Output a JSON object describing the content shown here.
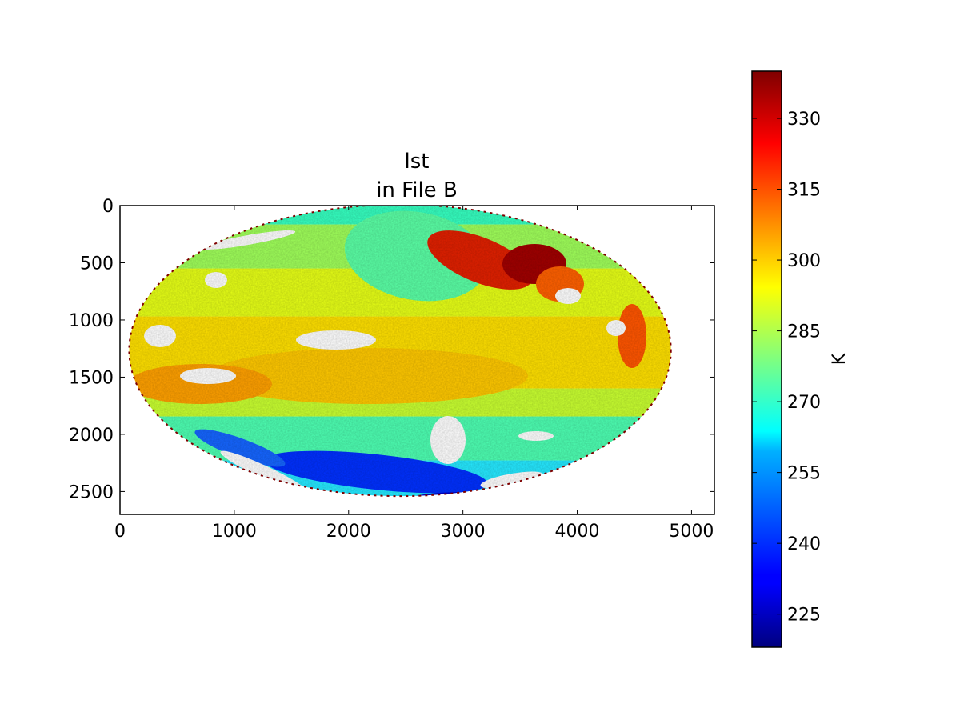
{
  "chart_data": {
    "type": "heatmap",
    "title_lines": [
      "lst",
      "in File B"
    ],
    "xlabel": "",
    "ylabel": "",
    "xlim": [
      0,
      5200
    ],
    "ylim": [
      2700,
      0
    ],
    "x_ticks": [
      0,
      1000,
      2000,
      3000,
      4000,
      5000
    ],
    "y_ticks": [
      0,
      500,
      1000,
      1500,
      2000,
      2500
    ],
    "x_tick_labels": [
      "0",
      "1000",
      "2000",
      "3000",
      "4000",
      "5000"
    ],
    "y_tick_labels": [
      "0",
      "500",
      "1000",
      "1500",
      "2000",
      "2500"
    ],
    "disk": {
      "center_x": 2450,
      "center_y": 1265,
      "radius_x": 2370,
      "radius_y": 1275
    },
    "colorbar": {
      "label": "K",
      "colormap": "jet",
      "vmin": 218,
      "vmax": 340,
      "ticks": [
        225,
        240,
        255,
        270,
        285,
        300,
        315,
        330
      ],
      "tick_labels": [
        "225",
        "240",
        "255",
        "270",
        "285",
        "300",
        "315",
        "330"
      ]
    },
    "grid": false,
    "colors": {
      "jet": [
        "#00007f",
        "#0000ff",
        "#007fff",
        "#00ffff",
        "#7fff7f",
        "#ffff00",
        "#ff7f00",
        "#ff0000",
        "#7f0000"
      ],
      "no_data": "#ffffff"
    }
  }
}
